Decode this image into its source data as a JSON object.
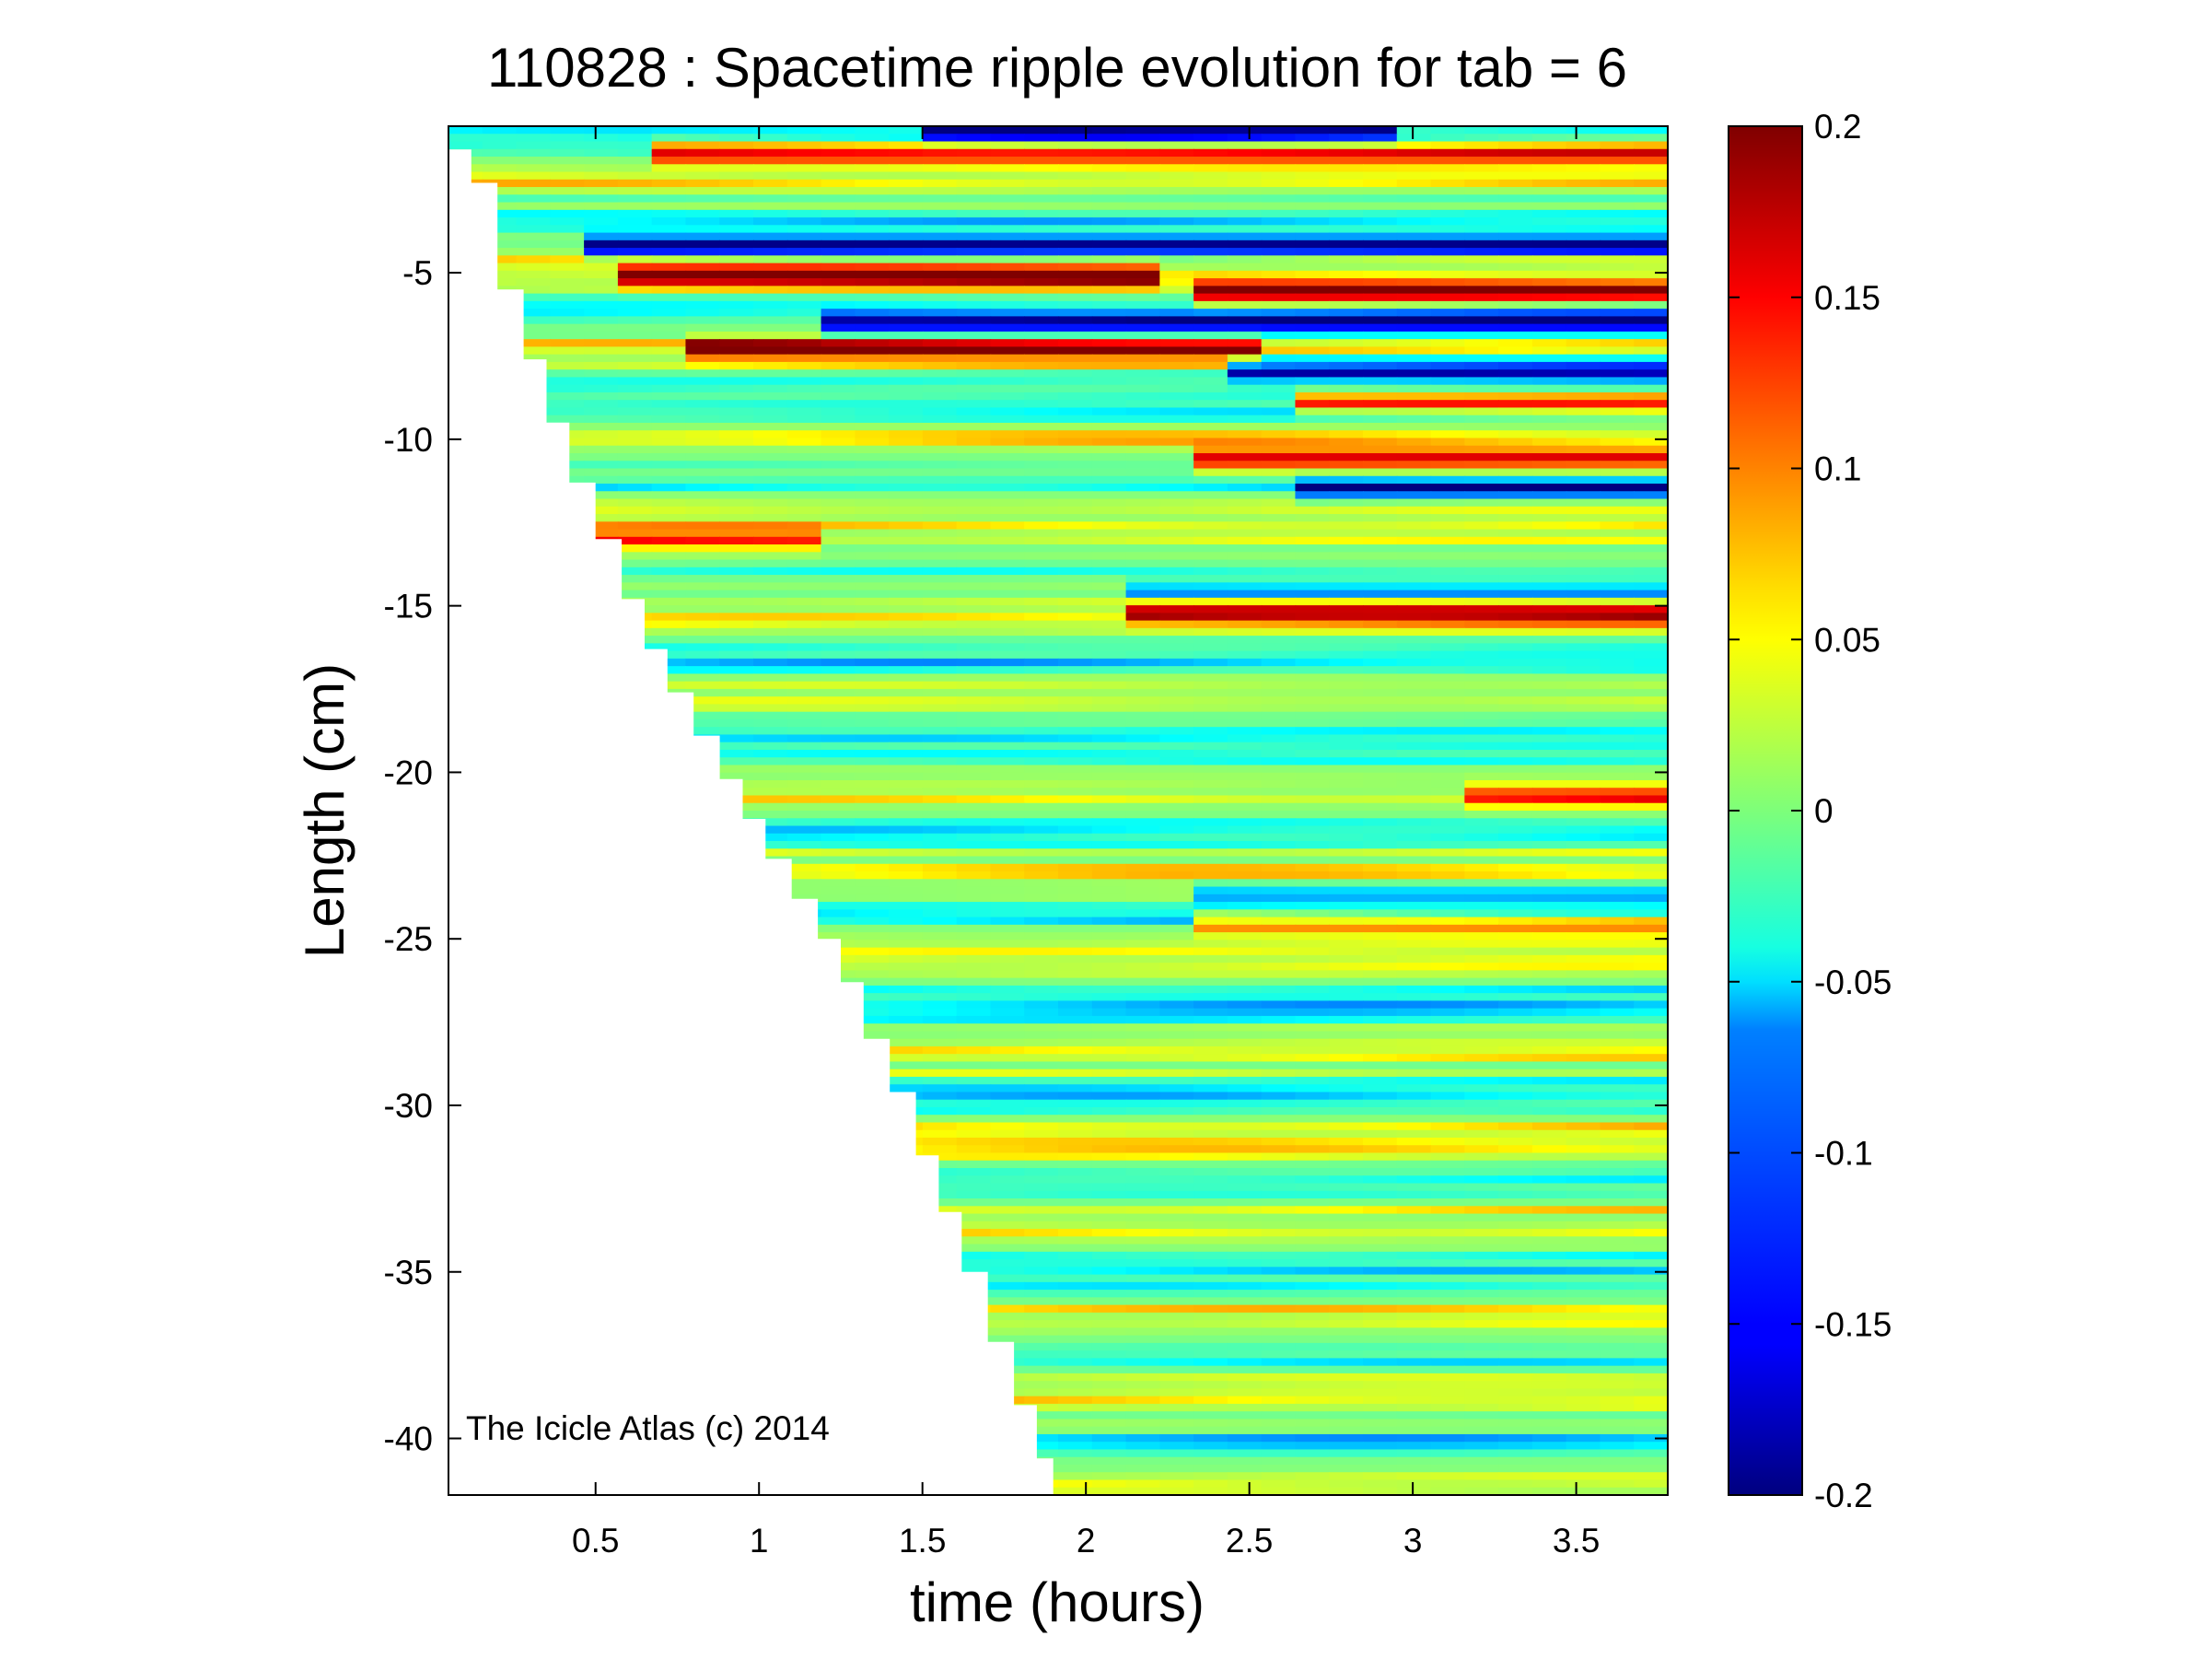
{
  "chart_data": {
    "type": "heatmap",
    "title": "110828 : Spacetime ripple evolution for tab = 6",
    "xlabel": "time (hours)",
    "ylabel": "Length (cm)",
    "xlim": [
      0.05,
      3.78
    ],
    "ylim": [
      -41.7,
      -0.6
    ],
    "x_ticks": [
      0.5,
      1,
      1.5,
      2,
      2.5,
      3,
      3.5
    ],
    "x_tick_labels": [
      "0.5",
      "1",
      "1.5",
      "2",
      "2.5",
      "3",
      "3.5"
    ],
    "y_ticks": [
      -5,
      -10,
      -15,
      -20,
      -25,
      -30,
      -35,
      -40
    ],
    "y_tick_labels": [
      "-5",
      "-10",
      "-15",
      "-20",
      "-25",
      "-30",
      "-35",
      "-40"
    ],
    "colorbar": {
      "colormap": "jet",
      "clim": [
        -0.2,
        0.2
      ],
      "ticks": [
        0.2,
        0.15,
        0.1,
        0.05,
        0,
        -0.05,
        -0.1,
        -0.15,
        -0.2
      ],
      "tick_labels": [
        "0.2",
        "0.15",
        "0.1",
        "0.05",
        "0",
        "-0.05",
        "-0.1",
        "-0.15",
        "-0.2"
      ]
    },
    "data_boundary": {
      "description_points_x": [
        0.05,
        0.12,
        0.2,
        0.28,
        0.35,
        0.42,
        0.5,
        0.58,
        0.65,
        0.72,
        0.8,
        0.88,
        0.95,
        1.02,
        1.1,
        1.18,
        1.25,
        1.32,
        1.4,
        1.48,
        1.55,
        1.62,
        1.7,
        1.78,
        1.85,
        1.9
      ],
      "description_points_y": [
        -1.3,
        -2.3,
        -5.5,
        -7.6,
        -9.5,
        -11.3,
        -13.0,
        -14.8,
        -16.3,
        -17.6,
        -18.9,
        -20.2,
        -21.4,
        -22.6,
        -23.8,
        -25.0,
        -26.3,
        -28.0,
        -29.6,
        -31.5,
        -33.2,
        -35.0,
        -37.1,
        -39.0,
        -40.6,
        -41.5
      ]
    },
    "features": [
      {
        "y": -1.4,
        "amplitude": 0.19,
        "t_start": 0.7,
        "t_end": 3.78
      },
      {
        "y": -0.7,
        "amplitude": -0.17,
        "t_start": 1.5,
        "t_end": 3.0
      },
      {
        "y": -4.2,
        "amplitude": -0.2,
        "t_start": 0.5,
        "t_end": 3.78
      },
      {
        "y": -5.1,
        "amplitude": 0.2,
        "t_start": 0.6,
        "t_end": 2.2
      },
      {
        "y": -5.6,
        "amplitude": 0.2,
        "t_start": 2.3,
        "t_end": 3.78
      },
      {
        "y": -6.5,
        "amplitude": -0.18,
        "t_start": 1.2,
        "t_end": 3.78
      },
      {
        "y": -7.3,
        "amplitude": 0.17,
        "t_start": 0.8,
        "t_end": 2.5
      },
      {
        "y": -7.9,
        "amplitude": -0.18,
        "t_start": 2.4,
        "t_end": 3.78
      },
      {
        "y": -8.9,
        "amplitude": 0.16,
        "t_start": 2.6,
        "t_end": 3.78
      },
      {
        "y": -10.6,
        "amplitude": 0.17,
        "t_start": 2.3,
        "t_end": 3.78
      },
      {
        "y": -11.5,
        "amplitude": -0.14,
        "t_start": 2.6,
        "t_end": 3.78
      },
      {
        "y": -13.0,
        "amplitude": 0.12,
        "t_start": 0.5,
        "t_end": 1.2
      },
      {
        "y": -15.2,
        "amplitude": 0.17,
        "t_start": 2.1,
        "t_end": 3.78
      },
      {
        "y": -14.6,
        "amplitude": -0.1,
        "t_start": 2.1,
        "t_end": 3.78
      },
      {
        "y": -20.7,
        "amplitude": 0.12,
        "t_start": 3.2,
        "t_end": 3.78
      },
      {
        "y": -23.7,
        "amplitude": -0.1,
        "t_start": 2.3,
        "t_end": 3.78
      },
      {
        "y": -24.5,
        "amplitude": 0.13,
        "t_start": 2.3,
        "t_end": 3.78
      }
    ]
  },
  "annotation": "The Icicle Atlas (c) 2014"
}
